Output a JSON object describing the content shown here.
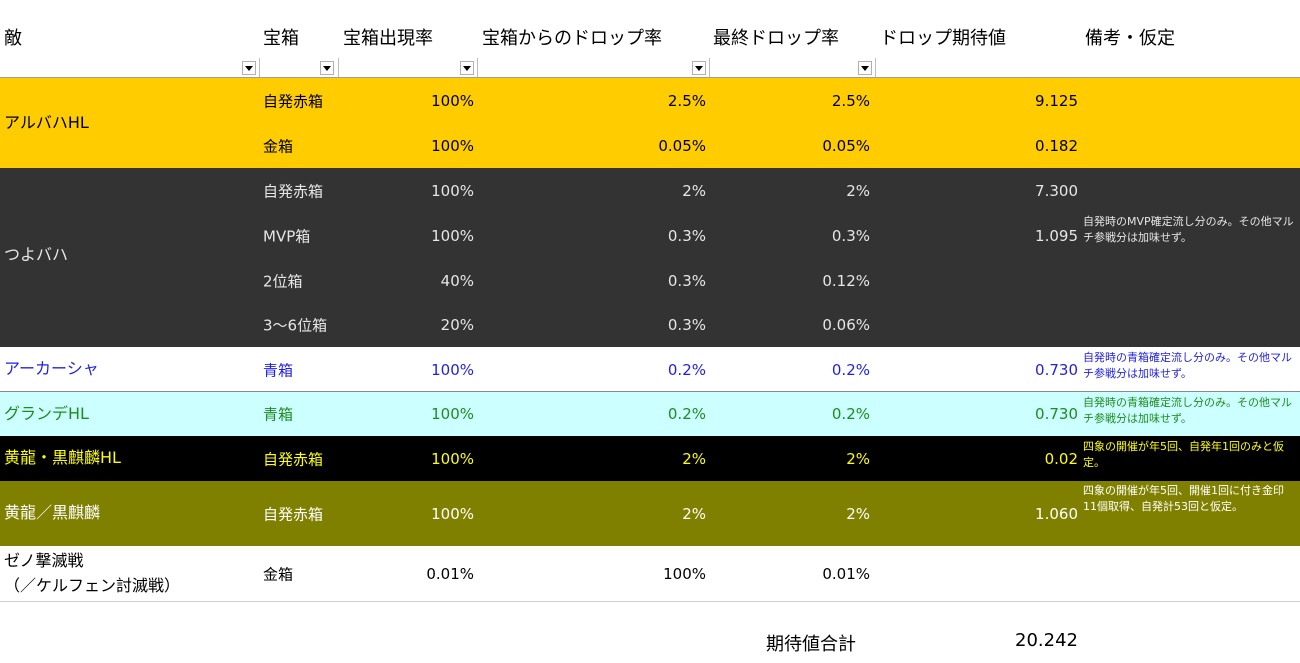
{
  "header": {
    "enemy": "敵",
    "box": "宝箱",
    "appear_rate": "宝箱出現率",
    "drop_rate": "宝箱からのドロップ率",
    "final_rate": "最終ドロップ率",
    "expected": "ドロップ期待値",
    "notes": "備考・仮定"
  },
  "groups": [
    {
      "enemy": "アルバハHL",
      "rows": [
        {
          "box": "自発赤箱",
          "rate": "100%",
          "drop": "2.5%",
          "final": "2.5%",
          "exp": "9.125"
        },
        {
          "box": "金箱",
          "rate": "100%",
          "drop": "0.05%",
          "final": "0.05%",
          "exp": "0.182"
        }
      ],
      "note": ""
    },
    {
      "enemy": "つよバハ",
      "rows": [
        {
          "box": "自発赤箱",
          "rate": "100%",
          "drop": "2%",
          "final": "2%",
          "exp": "7.300"
        },
        {
          "box": "MVP箱",
          "rate": "100%",
          "drop": "0.3%",
          "final": "0.3%",
          "exp": "1.095"
        },
        {
          "box": "2位箱",
          "rate": "40%",
          "drop": "0.3%",
          "final": "0.12%",
          "exp": ""
        },
        {
          "box": "3〜6位箱",
          "rate": "20%",
          "drop": "0.3%",
          "final": "0.06%",
          "exp": ""
        }
      ],
      "note": "自発時のMVP確定流し分のみ。その他マルチ参戦分は加味せず。"
    },
    {
      "enemy": "アーカーシャ",
      "rows": [
        {
          "box": "青箱",
          "rate": "100%",
          "drop": "0.2%",
          "final": "0.2%",
          "exp": "0.730"
        }
      ],
      "note": "自発時の青箱確定流し分のみ。その他マルチ参戦分は加味せず。"
    },
    {
      "enemy": "グランデHL",
      "rows": [
        {
          "box": "青箱",
          "rate": "100%",
          "drop": "0.2%",
          "final": "0.2%",
          "exp": "0.730"
        }
      ],
      "note": "自発時の青箱確定流し分のみ。その他マルチ参戦分は加味せず。"
    },
    {
      "enemy": "黄龍・黒麒麟HL",
      "rows": [
        {
          "box": "自発赤箱",
          "rate": "100%",
          "drop": "2%",
          "final": "2%",
          "exp": "0.02"
        }
      ],
      "note": "四象の開催が年5回、自発年1回のみと仮定。"
    },
    {
      "enemy": "黄龍／黒麒麟",
      "rows": [
        {
          "box": "自発赤箱",
          "rate": "100%",
          "drop": "2%",
          "final": "2%",
          "exp": "1.060"
        }
      ],
      "note": "四象の開催が年5回、開催1回に付き金印11個取得、自発計53回と仮定。"
    },
    {
      "enemy_line1": "ゼノ撃滅戦",
      "enemy_line2": "（／ケルフェン討滅戦）",
      "rows": [
        {
          "box": "金箱",
          "rate": "0.01%",
          "drop": "100%",
          "final": "0.01%",
          "exp": ""
        }
      ],
      "note": ""
    }
  ],
  "total": {
    "label": "期待値合計",
    "value": "20.242"
  },
  "colors": {
    "alba": "#ffcc00",
    "tsuyo": "#333333",
    "akasha_text": "#1f1fe6",
    "grande": "#ccffff",
    "ryu": "#000000",
    "ryu2": "#808000"
  }
}
